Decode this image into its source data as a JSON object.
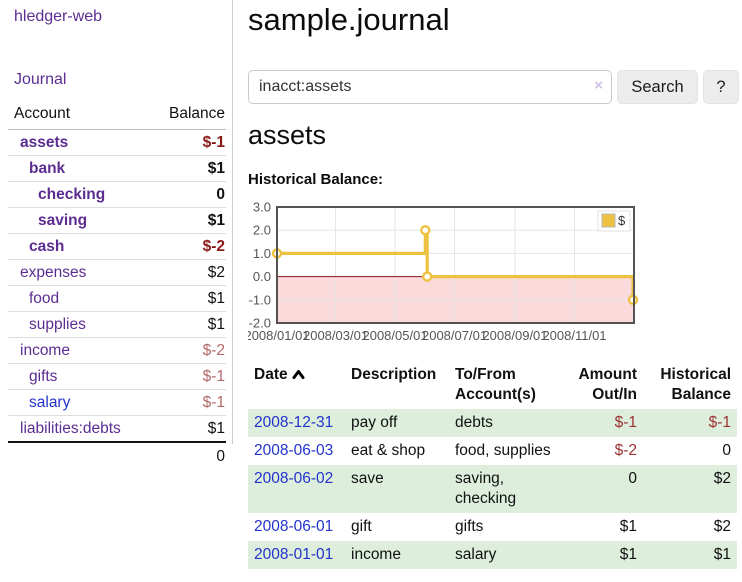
{
  "app": {
    "title": "hledger-web"
  },
  "sidebar": {
    "journal_label": "Journal",
    "account_header": "Account",
    "balance_header": "Balance",
    "accounts": [
      {
        "name": "assets",
        "depth": 1,
        "bold": true,
        "balance": "$-1"
      },
      {
        "name": "bank",
        "depth": 2,
        "bold": true,
        "balance": "$1"
      },
      {
        "name": "checking",
        "depth": 3,
        "bold": true,
        "balance": "0"
      },
      {
        "name": "saving",
        "depth": 3,
        "bold": true,
        "balance": "$1"
      },
      {
        "name": "cash",
        "depth": 2,
        "bold": true,
        "balance": "$-2"
      },
      {
        "name": "expenses",
        "depth": 1,
        "bold": false,
        "balance": "$2"
      },
      {
        "name": "food",
        "depth": 2,
        "bold": false,
        "balance": "$1"
      },
      {
        "name": "supplies",
        "depth": 2,
        "bold": false,
        "balance": "$1"
      },
      {
        "name": "income",
        "depth": 1,
        "bold": false,
        "balance": "$-2"
      },
      {
        "name": "gifts",
        "depth": 2,
        "bold": false,
        "balance": "$-1"
      },
      {
        "name": "salary",
        "depth": 2,
        "bold": false,
        "balance": "$-1",
        "link_color": "blue"
      },
      {
        "name": "liabilities:debts",
        "depth": 1,
        "bold": false,
        "balance": "$1"
      }
    ],
    "total": "0"
  },
  "header": {
    "title": "sample.journal"
  },
  "search": {
    "value": "inacct:assets",
    "clear_icon": "×",
    "button_label": "Search",
    "help_label": "?"
  },
  "account_page": {
    "heading": "assets",
    "chart_title": "Historical Balance:"
  },
  "chart_data": {
    "type": "line",
    "step": true,
    "title": "Historical Balance",
    "legend_label": "$",
    "legend_position": "top-right",
    "grid": true,
    "ylim": [
      -2.0,
      3.0
    ],
    "xlim": [
      "2008-01-01",
      "2009-01-01"
    ],
    "y_ticks": [
      "3.0",
      "2.0",
      "1.0",
      "0.0",
      "-1.0",
      "-2.0"
    ],
    "y_tick_values": [
      3,
      2,
      1,
      0,
      -1,
      -2
    ],
    "x_ticks": [
      "2008/01/01",
      "2008/03/01",
      "2008/05/01",
      "2008/07/01",
      "2008/09/01",
      "2008/11/01"
    ],
    "series": [
      {
        "name": "$",
        "color": "#edc240",
        "points": [
          [
            "2008-01-01",
            1
          ],
          [
            "2008-06-01",
            2
          ],
          [
            "2008-06-03",
            0
          ],
          [
            "2008-12-31",
            -1
          ]
        ]
      }
    ],
    "negative_region_color": "#fadada",
    "zero_line_color": "#8f1515"
  },
  "register": {
    "columns": [
      {
        "line1": "Date",
        "line2": "",
        "align": "left",
        "sorted": true
      },
      {
        "line1": "Description",
        "line2": "",
        "align": "left",
        "sorted": false
      },
      {
        "line1": "To/From",
        "line2": "Account(s)",
        "align": "left",
        "sorted": false
      },
      {
        "line1": "Amount",
        "line2": "Out/In",
        "align": "right",
        "sorted": false
      },
      {
        "line1": "Historical",
        "line2": "Balance",
        "align": "right",
        "sorted": false
      }
    ],
    "sort_icon": "chevron-up",
    "rows": [
      {
        "date": "2008-12-31",
        "description": "pay off",
        "accounts": "debts",
        "amount": "$-1",
        "balance": "$-1"
      },
      {
        "date": "2008-06-03",
        "description": "eat & shop",
        "accounts": "food, supplies",
        "amount": "$-2",
        "balance": "0"
      },
      {
        "date": "2008-06-02",
        "description": "save",
        "accounts": "saving, checking",
        "amount": "0",
        "balance": "$2"
      },
      {
        "date": "2008-06-01",
        "description": "gift",
        "accounts": "gifts",
        "amount": "$1",
        "balance": "$2"
      },
      {
        "date": "2008-01-01",
        "description": "income",
        "accounts": "salary",
        "amount": "$1",
        "balance": "$1"
      }
    ]
  },
  "colors": {
    "link_purple": "#5c2d91",
    "link_blue": "#2233cc",
    "negative_dark": "#8b1717",
    "negative_light": "#b26868",
    "negative_table": "#9e3131",
    "row_stripe_green": "#ddeedd",
    "chart_line_yellow": "#edc240",
    "chart_negative_pink": "#fadada",
    "chart_zero_line": "#8f1515"
  }
}
